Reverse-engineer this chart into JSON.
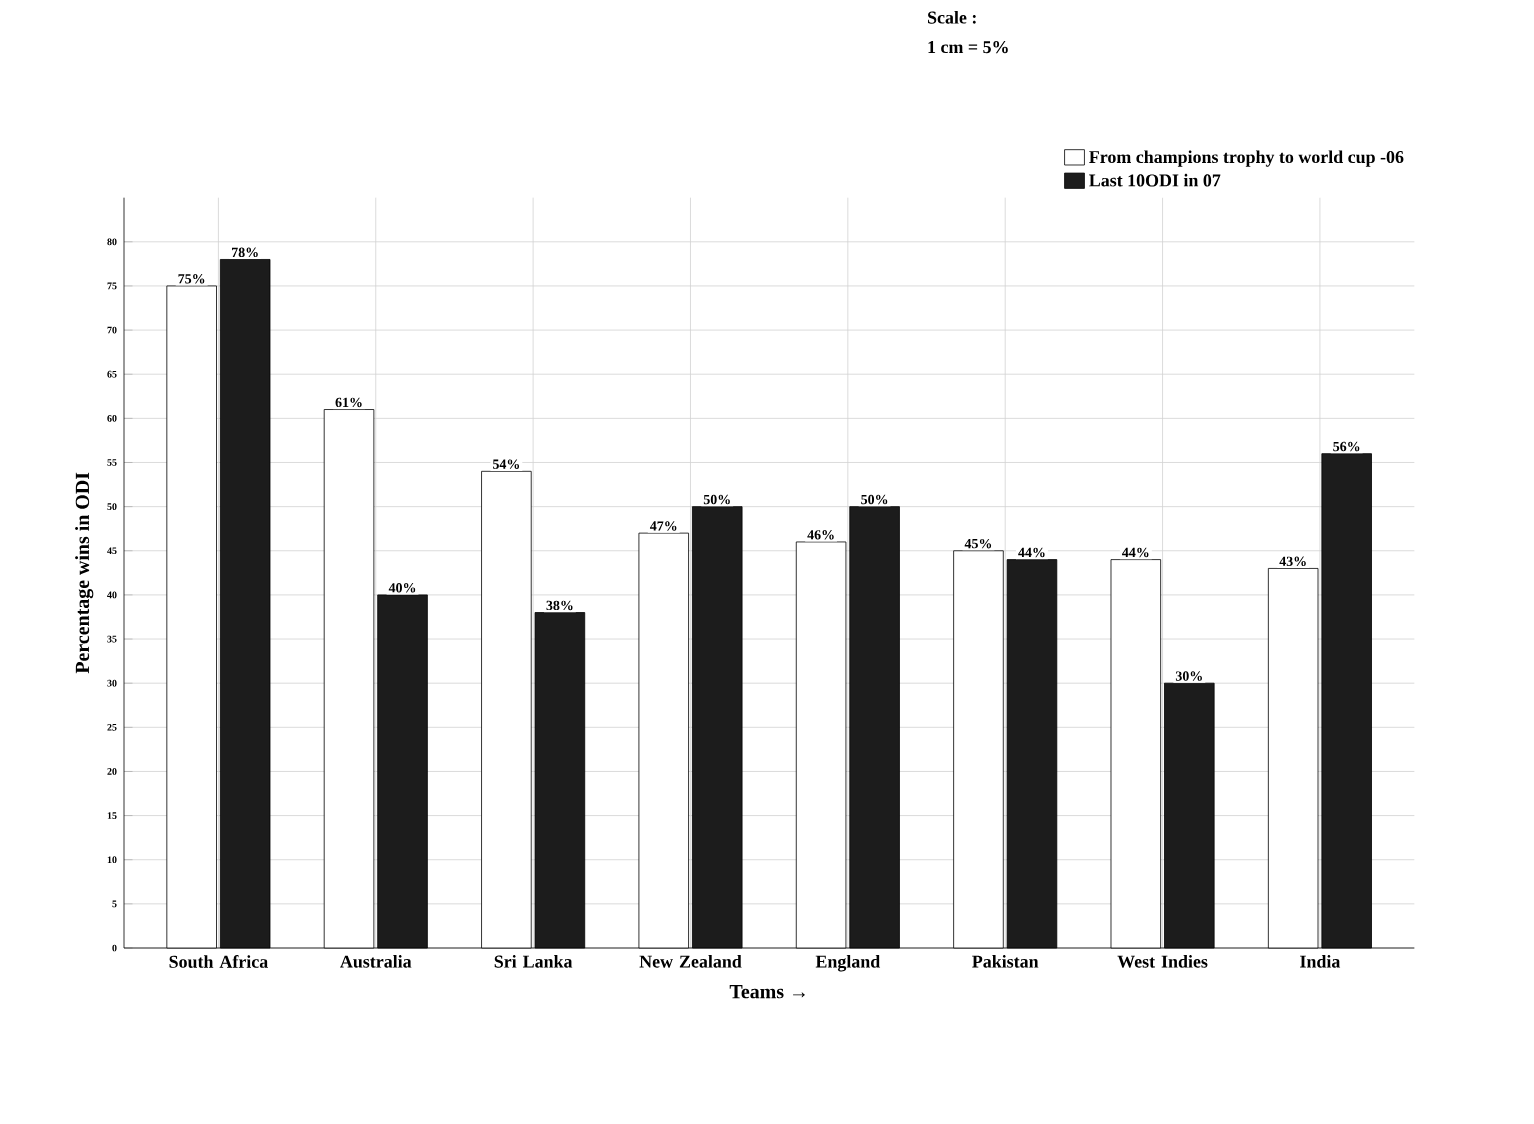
{
  "chart_data": {
    "type": "bar",
    "xlabel": "Teams →",
    "ylabel": "Percentage wins in ODI",
    "categories": [
      "South  Africa",
      "Australia",
      "Sri Lanka",
      "New Zealand",
      "England",
      "Pakistan",
      "West Indies",
      "India"
    ],
    "series": [
      {
        "name": "From champions trophy to world cup -06",
        "color": "#ffffff",
        "values": [
          75,
          61,
          54,
          47,
          46,
          45,
          44,
          43
        ],
        "value_labels": [
          "75%",
          "61%",
          "54%",
          "47%",
          "46%",
          "45%",
          "44%",
          "43%"
        ]
      },
      {
        "name": "Last 10ODI in 07",
        "color": "#1c1c1c",
        "values": [
          78,
          40,
          38,
          50,
          50,
          44,
          30,
          56
        ],
        "value_labels": [
          "78%",
          "40%",
          "38%",
          "50%",
          "50%",
          "44%",
          "30%",
          "56%"
        ]
      }
    ],
    "annotations": [
      "Scale :",
      "1 cm = 5%"
    ],
    "ylim": [
      0,
      85
    ],
    "yticks": [
      0,
      5,
      10,
      15,
      20,
      25,
      30,
      35,
      40,
      45,
      50,
      55,
      60,
      65,
      70,
      75,
      80
    ],
    "grid": true,
    "legend": "top right"
  }
}
